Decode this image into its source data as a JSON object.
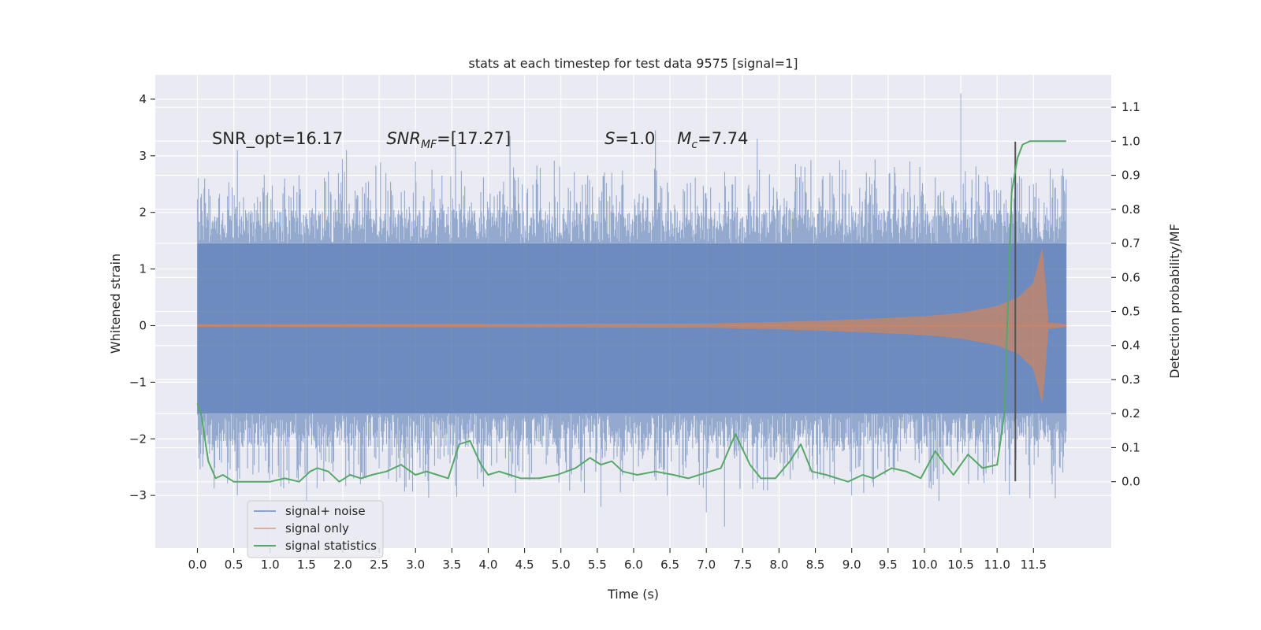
{
  "chart_data": {
    "type": "line",
    "title": "stats at each timestep for test data 9575 [signal=1]",
    "xlabel": "Time (s)",
    "ylabel_left": "Whitened strain",
    "ylabel_right": "Detection probability/MF",
    "xlim": [
      -0.58,
      12.57
    ],
    "ylim_left": [
      -3.93,
      4.43
    ],
    "ylim_right": [
      -0.195,
      1.195
    ],
    "grid": true,
    "legend_position": "lower-left",
    "x_ticks": [
      0.0,
      0.5,
      1.0,
      1.5,
      2.0,
      2.5,
      3.0,
      3.5,
      4.0,
      4.5,
      5.0,
      5.5,
      6.0,
      6.5,
      7.0,
      7.5,
      8.0,
      8.5,
      9.0,
      9.5,
      10.0,
      10.5,
      11.0,
      11.5
    ],
    "x_tick_labels": [
      "0.0",
      "0.5",
      "1.0",
      "1.5",
      "2.0",
      "2.5",
      "3.0",
      "3.5",
      "4.0",
      "4.5",
      "5.0",
      "5.5",
      "6.0",
      "6.5",
      "7.0",
      "7.5",
      "8.0",
      "8.5",
      "9.0",
      "9.5",
      "10.0",
      "10.5",
      "11.0",
      "11.5"
    ],
    "y_left_ticks": [
      4,
      3,
      2,
      1,
      0,
      -1,
      -2,
      -3
    ],
    "y_left_tick_labels": [
      "4",
      "3",
      "2",
      "1",
      "0",
      "−1",
      "−2",
      "−3"
    ],
    "y_right_ticks": [
      1.1,
      1.0,
      0.9,
      0.8,
      0.7,
      0.6,
      0.5,
      0.4,
      0.3,
      0.2,
      0.1,
      0.0
    ],
    "y_right_tick_labels": [
      "1.1",
      "1.0",
      "0.9",
      "0.8",
      "0.7",
      "0.6",
      "0.5",
      "0.4",
      "0.3",
      "0.2",
      "0.1",
      "0.0"
    ],
    "annotations": [
      {
        "text": "SNR_opt=16.17",
        "x": 0.2,
        "y": 3.3
      },
      {
        "text": "SNR_MF=[17.27]",
        "x": 2.6,
        "y": 3.3
      },
      {
        "text": "S=1.0",
        "x": 5.6,
        "y": 3.3
      },
      {
        "text": "M_c=7.74",
        "x": 6.6,
        "y": 3.3
      }
    ],
    "series": [
      {
        "name": "signal+ noise",
        "axis": "left",
        "color": "#4c72b0",
        "time_range": [
          0.0,
          11.95
        ],
        "core_band": [
          -1.55,
          1.45
        ],
        "peaks_high": [
          [
            0.1,
            2.6
          ],
          [
            0.55,
            3.1
          ],
          [
            1.2,
            2.6
          ],
          [
            2.05,
            3.1
          ],
          [
            3.0,
            2.9
          ],
          [
            3.55,
            3.2
          ],
          [
            4.3,
            3.35
          ],
          [
            5.7,
            2.7
          ],
          [
            6.3,
            3.45
          ],
          [
            7.7,
            3.3
          ],
          [
            8.7,
            2.7
          ],
          [
            9.8,
            2.9
          ],
          [
            10.5,
            4.1
          ],
          [
            11.5,
            2.5
          ]
        ],
        "peaks_low": [
          [
            0.55,
            -3.0
          ],
          [
            1.5,
            -3.1
          ],
          [
            2.65,
            -2.5
          ],
          [
            3.9,
            -2.6
          ],
          [
            5.55,
            -3.2
          ],
          [
            7.0,
            -3.3
          ],
          [
            7.25,
            -3.55
          ],
          [
            8.7,
            -2.7
          ],
          [
            9.3,
            -2.85
          ],
          [
            10.2,
            -3.1
          ],
          [
            11.45,
            -3.05
          ],
          [
            11.8,
            -3.05
          ]
        ]
      },
      {
        "name": "signal only",
        "axis": "left",
        "color": "#dd8452",
        "envelope": {
          "t": [
            0.0,
            7.0,
            8.0,
            9.0,
            10.0,
            10.5,
            11.0,
            11.3,
            11.5,
            11.62,
            11.67,
            11.7,
            11.95
          ],
          "amp": [
            0.02,
            0.03,
            0.06,
            0.1,
            0.16,
            0.22,
            0.34,
            0.5,
            0.75,
            1.35,
            0.6,
            0.05,
            0.02
          ]
        }
      },
      {
        "name": "signal statistics",
        "axis": "right",
        "color": "#55a868",
        "x": [
          0.0,
          0.05,
          0.15,
          0.25,
          0.35,
          0.5,
          0.65,
          0.8,
          1.0,
          1.2,
          1.4,
          1.55,
          1.65,
          1.8,
          1.95,
          2.1,
          2.25,
          2.4,
          2.6,
          2.8,
          3.0,
          3.15,
          3.3,
          3.45,
          3.6,
          3.75,
          3.9,
          4.0,
          4.15,
          4.3,
          4.45,
          4.7,
          4.95,
          5.2,
          5.4,
          5.55,
          5.7,
          5.85,
          6.05,
          6.3,
          6.55,
          6.75,
          6.9,
          7.2,
          7.4,
          7.6,
          7.75,
          7.95,
          8.15,
          8.3,
          8.45,
          8.65,
          8.95,
          9.15,
          9.3,
          9.55,
          9.75,
          9.95,
          10.15,
          10.25,
          10.4,
          10.6,
          10.8,
          11.0,
          11.1,
          11.2,
          11.28,
          11.35,
          11.45,
          11.55,
          11.7,
          11.8,
          11.95
        ],
        "y": [
          0.23,
          0.2,
          0.06,
          0.01,
          0.02,
          0.0,
          0.0,
          0.0,
          0.0,
          0.01,
          0.0,
          0.03,
          0.04,
          0.03,
          0.0,
          0.02,
          0.01,
          0.02,
          0.03,
          0.05,
          0.02,
          0.03,
          0.02,
          0.01,
          0.11,
          0.12,
          0.05,
          0.02,
          0.03,
          0.02,
          0.01,
          0.01,
          0.02,
          0.04,
          0.07,
          0.05,
          0.06,
          0.03,
          0.02,
          0.03,
          0.02,
          0.01,
          0.02,
          0.04,
          0.14,
          0.05,
          0.01,
          0.01,
          0.06,
          0.11,
          0.03,
          0.02,
          0.0,
          0.02,
          0.01,
          0.04,
          0.03,
          0.01,
          0.09,
          0.06,
          0.02,
          0.08,
          0.04,
          0.05,
          0.2,
          0.85,
          0.95,
          0.99,
          1.0,
          1.0,
          1.0,
          1.0,
          1.0
        ]
      }
    ],
    "vertical_marker": {
      "x": 11.25,
      "y_top": 3.25,
      "y_bottom": -2.75,
      "color": "#555555"
    }
  }
}
